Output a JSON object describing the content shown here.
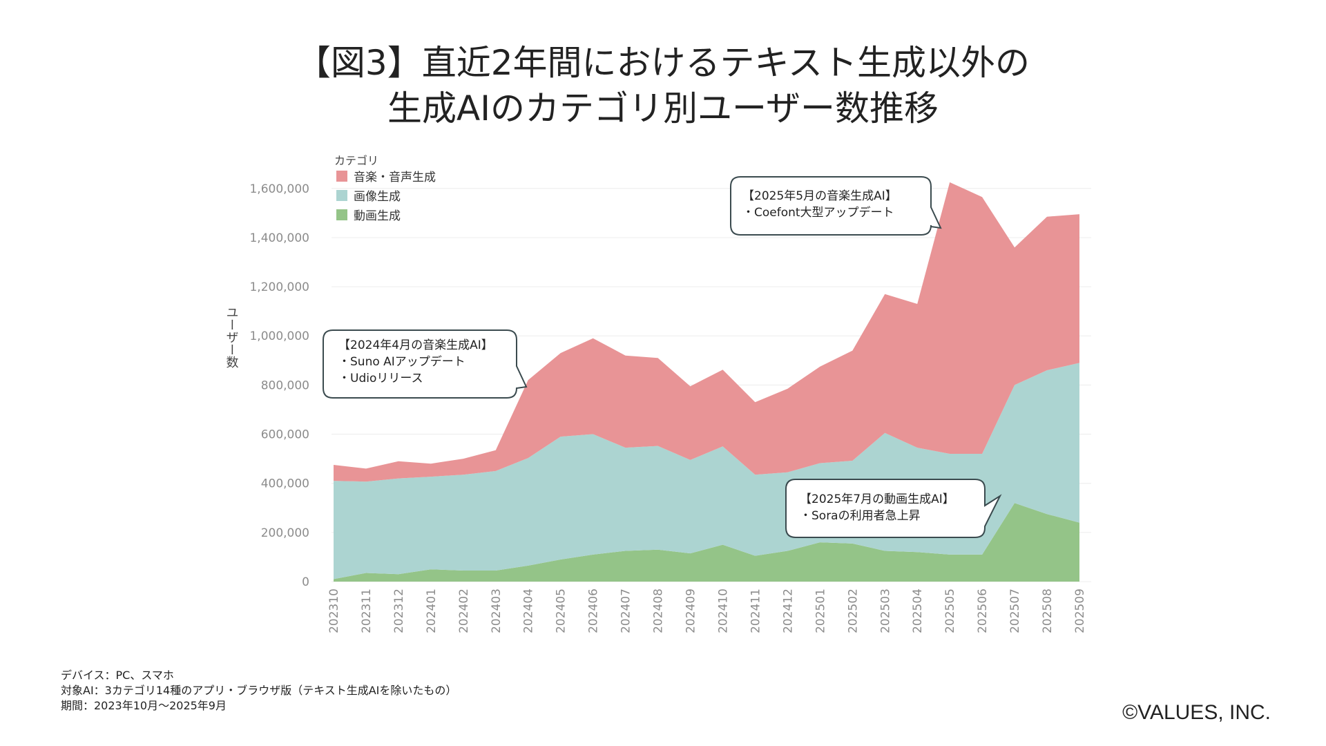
{
  "title": {
    "line1": "【図3】直近2年間におけるテキスト生成以外の",
    "line2": "生成AIのカテゴリ別ユーザー数推移"
  },
  "footnotes": {
    "device": "デバイス：PC、スマホ",
    "target": "対象AI：3カテゴリ14種のアプリ・ブラウザ版（テキスト生成AIを除いたもの）",
    "period": "期間：2023年10月〜2025年9月"
  },
  "copyright": "©VALUES, INC.",
  "colors": {
    "music": "#e89496",
    "image": "#acd4d1",
    "video": "#94c488",
    "callout_border": "#3a4a4e",
    "grid": "#ececec",
    "tick": "#8c8c8c"
  },
  "chart_data": {
    "type": "area",
    "stacked": true,
    "title": "【図3】直近2年間におけるテキスト生成以外の生成AIのカテゴリ別ユーザー数推移",
    "xlabel": "",
    "ylabel": "ユーザー数",
    "ylim": [
      0,
      1650000
    ],
    "yticks": [
      0,
      200000,
      400000,
      600000,
      800000,
      1000000,
      1200000,
      1400000,
      1600000
    ],
    "ytick_labels": [
      "0",
      "200,000",
      "400,000",
      "600,000",
      "800,000",
      "1,000,000",
      "1,200,000",
      "1,400,000",
      "1,600,000"
    ],
    "legend_title": "カテゴリ",
    "legend_position": "top-left",
    "categories": [
      "202310",
      "202311",
      "202312",
      "202401",
      "202402",
      "202403",
      "202404",
      "202405",
      "202406",
      "202407",
      "202408",
      "202409",
      "202410",
      "202411",
      "202412",
      "202501",
      "202502",
      "202503",
      "202504",
      "202505",
      "202506",
      "202507",
      "202508",
      "202509"
    ],
    "series": [
      {
        "name": "動画生成",
        "color": "#94c488",
        "values": [
          10000,
          35000,
          30000,
          50000,
          45000,
          45000,
          65000,
          90000,
          110000,
          125000,
          130000,
          115000,
          150000,
          105000,
          125000,
          160000,
          155000,
          125000,
          120000,
          110000,
          110000,
          320000,
          275000,
          240000
        ]
      },
      {
        "name": "画像生成",
        "color": "#acd4d1",
        "values": [
          400000,
          372000,
          390000,
          377000,
          390000,
          405000,
          438000,
          500000,
          490000,
          420000,
          422000,
          380000,
          400000,
          330000,
          320000,
          322000,
          337000,
          480000,
          425000,
          410000,
          410000,
          480000,
          585000,
          650000
        ]
      },
      {
        "name": "音楽・音声生成",
        "color": "#e89496",
        "values": [
          65000,
          53000,
          70000,
          53000,
          65000,
          85000,
          317000,
          340000,
          390000,
          375000,
          358000,
          300000,
          312000,
          295000,
          340000,
          393000,
          448000,
          565000,
          585000,
          1105000,
          1045000,
          560000,
          625000,
          605000
        ]
      }
    ],
    "annotations": [
      {
        "title": "【2024年4月の音楽生成AI】",
        "lines": [
          "・Suno AIアップデート",
          "・Udioリリース"
        ],
        "points_to": "202404"
      },
      {
        "title": "【2025年5月の音楽生成AI】",
        "lines": [
          "・Coefont大型アップデート"
        ],
        "points_to": "202505"
      },
      {
        "title": "【2025年7月の動画生成AI】",
        "lines": [
          "・Soraの利用者急上昇"
        ],
        "points_to": "202507"
      }
    ]
  }
}
